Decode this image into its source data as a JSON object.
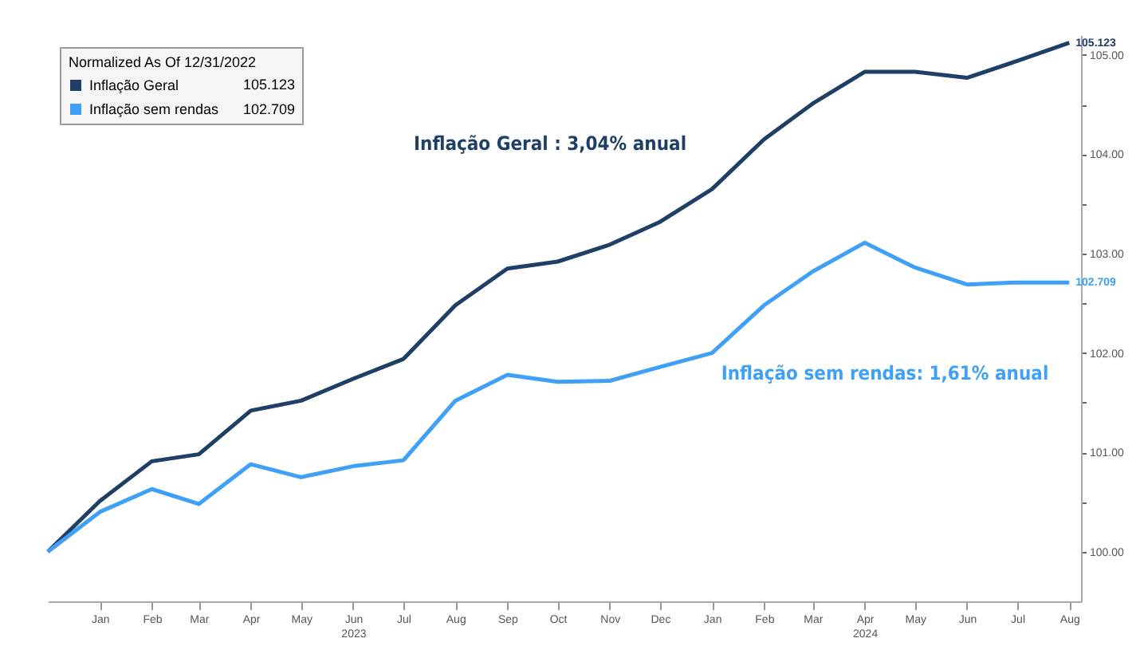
{
  "chart_data": {
    "type": "line",
    "legend_title": "Normalized As Of 12/31/2022",
    "x": [
      "2022-12",
      "2023-01",
      "2023-02",
      "2023-03",
      "2023-04",
      "2023-05",
      "2023-06",
      "2023-07",
      "2023-08",
      "2023-09",
      "2023-10",
      "2023-11",
      "2023-12",
      "2024-01",
      "2024-02",
      "2024-03",
      "2024-04",
      "2024-05",
      "2024-06",
      "2024-07",
      "2024-08"
    ],
    "series": [
      {
        "name": "Inflação Geral",
        "color": "#1f3f66",
        "values": [
          100,
          100.51,
          100.91,
          100.98,
          101.42,
          101.52,
          101.74,
          101.94,
          102.48,
          102.85,
          102.92,
          103.09,
          103.32,
          103.65,
          104.15,
          104.51,
          104.83,
          104.83,
          104.77,
          104.94,
          105.123
        ],
        "value_labels": [
          null,
          null,
          null,
          null,
          null,
          null,
          null,
          null,
          null,
          null,
          null,
          null,
          null,
          null,
          null,
          null,
          null,
          null,
          null,
          null,
          "105.123"
        ]
      },
      {
        "name": "Inflação sem rendas",
        "color": "#3fa0f5",
        "values": [
          100,
          100.4,
          100.63,
          100.48,
          100.88,
          100.75,
          100.86,
          100.92,
          101.52,
          101.78,
          101.71,
          101.72,
          101.86,
          102.0,
          102.48,
          102.82,
          103.11,
          102.86,
          102.69,
          102.71,
          102.709
        ],
        "value_labels": [
          null,
          null,
          null,
          null,
          null,
          null,
          null,
          null,
          null,
          null,
          null,
          null,
          null,
          null,
          null,
          null,
          null,
          null,
          null,
          null,
          "102.709"
        ]
      }
    ],
    "annotations": [
      "Inflação Geral : 3,04% anual",
      "Inflação sem rendas: 1,61% anual"
    ],
    "xlim": [
      "2022-12-01",
      "2024-08-08"
    ],
    "xticks": [
      {
        "value": "2023-01",
        "label": "Jan"
      },
      {
        "value": "2023-02",
        "label": "Feb"
      },
      {
        "value": "2023-03",
        "label": "Mar"
      },
      {
        "value": "2023-04",
        "label": "Apr"
      },
      {
        "value": "2023-05",
        "label": "May"
      },
      {
        "value": "2023-06",
        "label": "Jun\n2023"
      },
      {
        "value": "2023-07",
        "label": "Jul"
      },
      {
        "value": "2023-08",
        "label": "Aug"
      },
      {
        "value": "2023-09",
        "label": "Sep"
      },
      {
        "value": "2023-10",
        "label": "Oct"
      },
      {
        "value": "2023-11",
        "label": "Nov"
      },
      {
        "value": "2023-12",
        "label": "Dec"
      },
      {
        "value": "2024-01",
        "label": "Jan"
      },
      {
        "value": "2024-02",
        "label": "Feb"
      },
      {
        "value": "2024-03",
        "label": "Mar"
      },
      {
        "value": "2024-04",
        "label": "Apr\n2024"
      },
      {
        "value": "2024-05",
        "label": "May"
      },
      {
        "value": "2024-06",
        "label": "Jun"
      },
      {
        "value": "2024-07",
        "label": "Jul"
      },
      {
        "value": "2024-08",
        "label": "Aug"
      }
    ],
    "ylim": [
      99.5,
      105.2
    ],
    "yticks": [
      {
        "value": 100,
        "label": "100.00"
      },
      {
        "value": 100.5,
        "label": null
      },
      {
        "value": 101,
        "label": "101.00"
      },
      {
        "value": 101.5,
        "label": null
      },
      {
        "value": 102,
        "label": "102.00"
      },
      {
        "value": 102.5,
        "label": null
      },
      {
        "value": 103,
        "label": "103.00"
      },
      {
        "value": 103.5,
        "label": null
      },
      {
        "value": 104,
        "label": "104.00"
      },
      {
        "value": 104.5,
        "label": null
      },
      {
        "value": 105,
        "label": "105.00"
      }
    ],
    "legend": "top left",
    "grid": false,
    "marker": "none",
    "line_style": "solid"
  }
}
